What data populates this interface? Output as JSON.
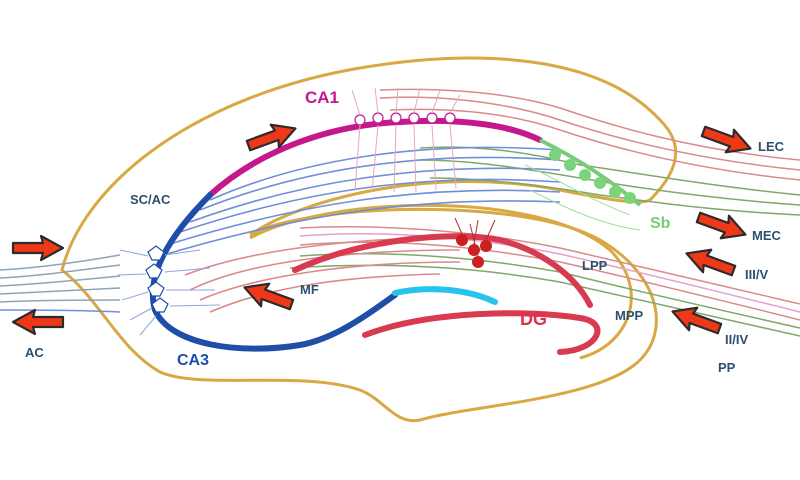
{
  "labels": {
    "ca1": "CA1",
    "ca3": "CA3",
    "dg": "DG",
    "sb": "Sb",
    "sc_ac": "SC/AC",
    "mf": "MF",
    "ac": "AC",
    "lec": "LEC",
    "mec": "MEC",
    "lpp": "LPP",
    "mpp": "MPP",
    "iii_v": "III/V",
    "ii_iv": "II/IV",
    "pp": "PP"
  },
  "colors": {
    "outline": "#d8a843",
    "ca1": "#c4188c",
    "ca3": "#1f4ea8",
    "dg": "#d83a50",
    "dg_light": "#27c3ec",
    "subiculum": "#78cc78",
    "fibers_pink": "#d98a8a",
    "fibers_green": "#7fa86a",
    "fibers_blue": "#6f8fd8",
    "arrow": "#ee3818",
    "label_dark": "#2e4f6e"
  }
}
